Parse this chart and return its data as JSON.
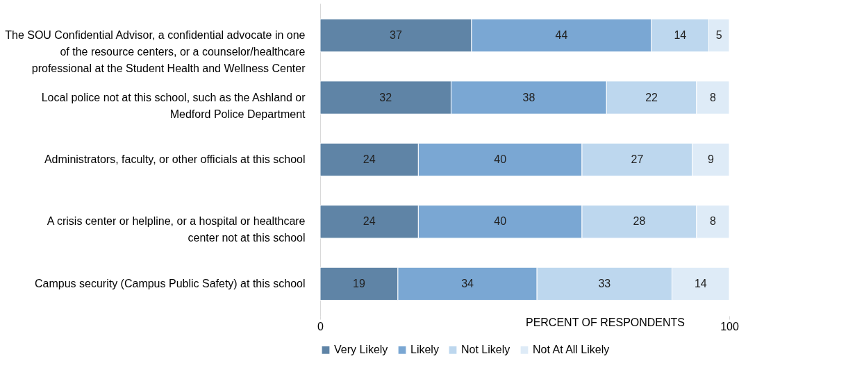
{
  "chart_data": {
    "type": "bar",
    "orientation": "horizontal",
    "stacked": true,
    "xlabel": "PERCENT OF RESPONDENTS",
    "categories": [
      "The SOU Confidential Advisor, a confidential advocate in one of the resource centers, or a counselor/healthcare professional at the Student Health and Wellness Center",
      "Local police not at this school, such as the Ashland or Medford Police Department",
      "Administrators, faculty, or other officials at this school",
      "A crisis center or helpline, or a hospital or healthcare center not at this school",
      "Campus security (Campus Public Safety) at this school"
    ],
    "series": [
      {
        "name": "Very Likely",
        "color": "#5f84a6",
        "values": [
          37,
          32,
          24,
          24,
          19
        ]
      },
      {
        "name": "Likely",
        "color": "#7aa7d3",
        "values": [
          44,
          38,
          40,
          40,
          34
        ]
      },
      {
        "name": "Not Likely",
        "color": "#bdd7ee",
        "values": [
          14,
          22,
          27,
          28,
          33
        ]
      },
      {
        "name": "Not At All Likely",
        "color": "#deebf7",
        "values": [
          5,
          8,
          9,
          8,
          14
        ]
      }
    ],
    "xlim": [
      0,
      100
    ],
    "xticks": [
      0,
      100
    ],
    "data_labels": true,
    "grid": false,
    "legend": "bottom"
  }
}
